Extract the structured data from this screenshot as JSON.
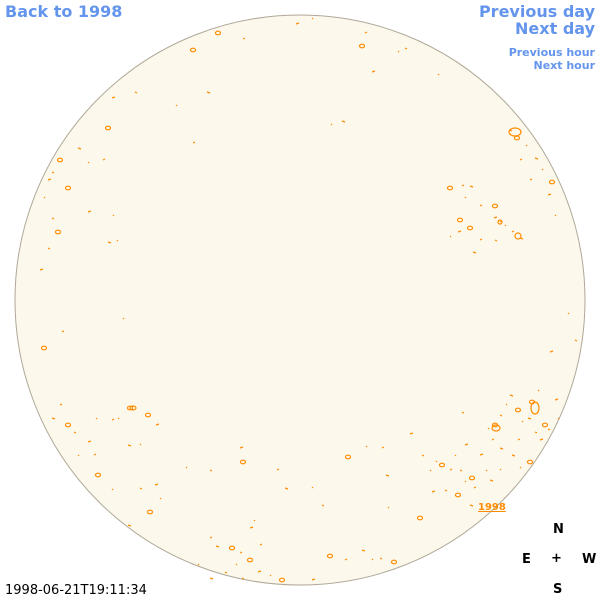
{
  "nav": {
    "back": "Back to 1998",
    "previous_day": "Previous day",
    "next_day": "Next day",
    "previous_hour": "Previous hour",
    "next_hour": "Next hour"
  },
  "disk": {
    "year_link": "1998",
    "timestamp": "1998-06-21T19:11:34",
    "colors": {
      "disk_fill": "#fdf8ec",
      "limb": "#b0a898",
      "contour": "#ff8c00",
      "nav": "#6495ed"
    }
  },
  "compass": {
    "north": "N",
    "east": "E",
    "center": "+",
    "west": "W",
    "south": "S"
  }
}
